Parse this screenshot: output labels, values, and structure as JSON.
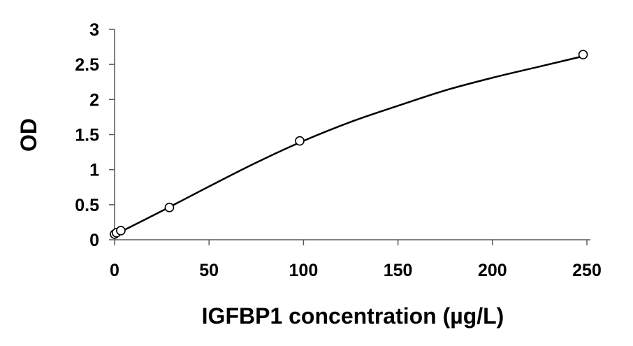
{
  "chart_data": {
    "type": "scatter",
    "title": "",
    "xlabel": "IGFBP1 concentration (µg/L)",
    "ylabel": "OD",
    "xlim": [
      0,
      250
    ],
    "ylim": [
      0,
      3
    ],
    "xticks": [
      0,
      50,
      100,
      150,
      200,
      250
    ],
    "xtick_labels": [
      "0",
      "50",
      "100",
      "150",
      "200",
      "250"
    ],
    "yticks": [
      0,
      0.5,
      1,
      1.5,
      2,
      2.5,
      3
    ],
    "ytick_labels": [
      "0",
      "0.5",
      "1",
      "1.5",
      "2",
      "2.5",
      "3"
    ],
    "grid": false,
    "legend": "none",
    "series": [
      {
        "points": [
          {
            "x": 0,
            "y": 0.08
          },
          {
            "x": 1,
            "y": 0.1
          },
          {
            "x": 3.3,
            "y": 0.13
          },
          {
            "x": 29,
            "y": 0.46
          },
          {
            "x": 98,
            "y": 1.41
          },
          {
            "x": 248,
            "y": 2.64
          }
        ],
        "marker": "open-circle",
        "color": "#000000"
      }
    ],
    "fit_curve": {
      "x": [
        0,
        25,
        50,
        75,
        100,
        125,
        150,
        175,
        200,
        225,
        250
      ],
      "y": [
        0.07,
        0.41,
        0.76,
        1.1,
        1.41,
        1.68,
        1.91,
        2.13,
        2.31,
        2.47,
        2.63
      ],
      "color": "#000000"
    }
  }
}
